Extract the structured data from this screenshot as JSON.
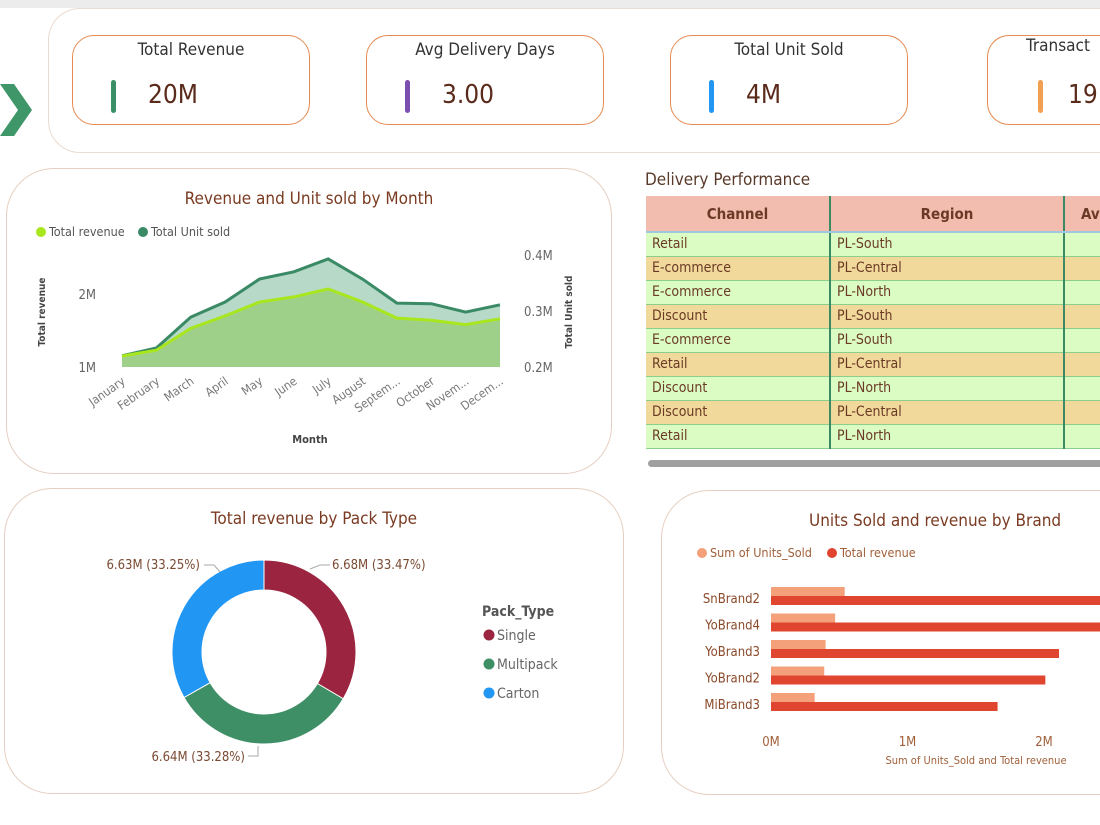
{
  "kpis": [
    {
      "title": "Total Revenue",
      "value": "20M",
      "color": "#3a8f66"
    },
    {
      "title": "Avg Delivery Days",
      "value": "3.00",
      "color": "#7b4fb0"
    },
    {
      "title": "Total Unit Sold",
      "value": "4M",
      "color": "#2196f3"
    },
    {
      "title": "Transact",
      "value": "19",
      "color": "#f0a050"
    }
  ],
  "delivery": {
    "title": "Delivery Performance",
    "columns": [
      "Channel",
      "Region",
      "Av"
    ],
    "rows": [
      [
        "Retail",
        "PL-South"
      ],
      [
        "E-commerce",
        "PL-Central"
      ],
      [
        "E-commerce",
        "PL-North"
      ],
      [
        "Discount",
        "PL-South"
      ],
      [
        "E-commerce",
        "PL-South"
      ],
      [
        "Retail",
        "PL-Central"
      ],
      [
        "Discount",
        "PL-North"
      ],
      [
        "Discount",
        "PL-Central"
      ],
      [
        "Retail",
        "PL-North"
      ]
    ]
  },
  "chart_data": [
    {
      "type": "area",
      "title": "Revenue and Unit sold by Month",
      "xlabel": "Month",
      "ylabel": "Total revenue",
      "y2label": "Total Unit sold",
      "categories": [
        "January",
        "February",
        "March",
        "April",
        "May",
        "June",
        "July",
        "August",
        "Septem...",
        "October",
        "Novem...",
        "Decem..."
      ],
      "yticks": [
        "1M",
        "2M"
      ],
      "y2ticks": [
        "0.2M",
        "0.3M",
        "0.4M"
      ],
      "ylim": [
        1,
        2.0
      ],
      "y2lim": [
        0.2,
        0.4
      ],
      "series": [
        {
          "name": "Total revenue",
          "axis": "left",
          "color": "#a8e61d",
          "values": [
            1.15,
            1.23,
            1.53,
            1.7,
            1.89,
            1.96,
            2.07,
            1.89,
            1.67,
            1.64,
            1.58,
            1.66
          ]
        },
        {
          "name": "Total Unit sold",
          "axis": "right",
          "color": "#3a8a66",
          "values": [
            0.22,
            0.234,
            0.289,
            0.316,
            0.357,
            0.37,
            0.393,
            0.357,
            0.314,
            0.313,
            0.298,
            0.311
          ]
        }
      ],
      "legend": "top-left"
    },
    {
      "type": "pie",
      "title": "Total revenue by Pack Type",
      "legend_title": "Pack_Type",
      "slices": [
        {
          "name": "Single",
          "value": 6.68,
          "label": "6.68M (33.47%)",
          "percent": 33.47,
          "color": "#9b2540"
        },
        {
          "name": "Multipack",
          "value": 6.64,
          "label": "6.64M (33.28%)",
          "percent": 33.28,
          "color": "#3f8f66"
        },
        {
          "name": "Carton",
          "value": 6.63,
          "label": "6.63M (33.25%)",
          "percent": 33.25,
          "color": "#2196f3"
        }
      ],
      "legend": "right"
    },
    {
      "type": "bar",
      "orientation": "horizontal",
      "title": "Units Sold and revenue by Brand",
      "xlabel": "Sum of Units_Sold and Total revenue",
      "categories": [
        "SnBrand2",
        "YoBrand4",
        "YoBrand3",
        "YoBrand2",
        "MiBrand3"
      ],
      "xticks": [
        "0M",
        "1M",
        "2M"
      ],
      "series": [
        {
          "name": "Sum of Units_Sold",
          "color": "#f4a07a",
          "values": [
            0.54,
            0.47,
            0.4,
            0.39,
            0.32
          ]
        },
        {
          "name": "Total revenue",
          "color": "#e04530",
          "values": [
            2.5,
            2.45,
            2.11,
            2.01,
            1.66
          ]
        }
      ],
      "legend": "top-left"
    }
  ]
}
